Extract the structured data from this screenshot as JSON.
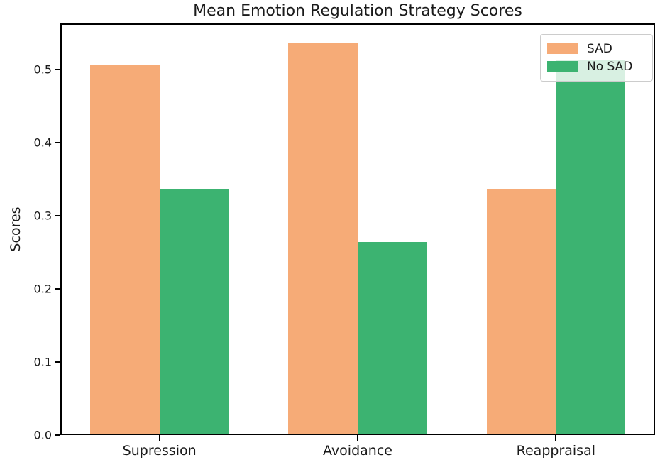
{
  "figure": {
    "background": "#ffffff",
    "text_color": "#1a1a1a",
    "spine_color": "#000000"
  },
  "chart_data": {
    "type": "bar",
    "title": "Mean Emotion Regulation Strategy Scores",
    "xlabel": "",
    "ylabel": "Scores",
    "categories": [
      "Supression",
      "Avoidance",
      "Reappraisal"
    ],
    "series": [
      {
        "name": "SAD",
        "color": "#f6ab77",
        "values": [
          0.504,
          0.535,
          0.334
        ]
      },
      {
        "name": "No SAD",
        "color": "#3cb371",
        "values": [
          0.334,
          0.262,
          0.511
        ]
      }
    ],
    "yticks": [
      0.0,
      0.1,
      0.2,
      0.3,
      0.4,
      0.5
    ],
    "ytick_labels": [
      "0.0",
      "0.1",
      "0.2",
      "0.3",
      "0.4",
      "0.5"
    ],
    "ylim": [
      0,
      0.563
    ],
    "bar_width_fraction": 0.35,
    "grid": false,
    "legend": {
      "position": "upper right"
    }
  }
}
